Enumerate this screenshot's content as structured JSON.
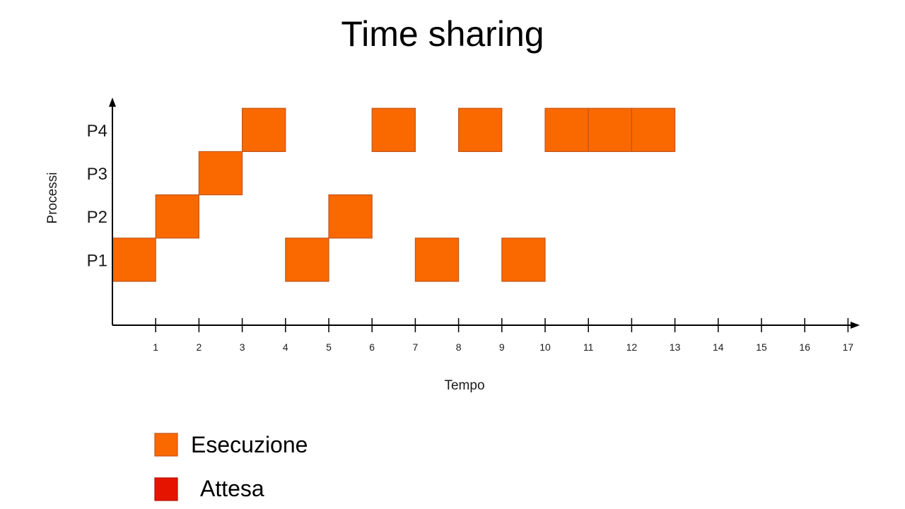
{
  "chart_data": {
    "type": "gantt",
    "title": "Time sharing",
    "xlabel": "Tempo",
    "ylabel": "Processi",
    "xlim": [
      0,
      17
    ],
    "x_ticks": [
      1,
      2,
      3,
      4,
      5,
      6,
      7,
      8,
      9,
      10,
      11,
      12,
      13,
      14,
      15,
      16,
      17
    ],
    "categories": [
      "P1",
      "P2",
      "P3",
      "P4"
    ],
    "series": [
      {
        "name": "Esecuzione",
        "color": "#fa6800",
        "stroke": "#c0571c",
        "slots": [
          {
            "process": "P1",
            "start": 0,
            "end": 1
          },
          {
            "process": "P2",
            "start": 1,
            "end": 2
          },
          {
            "process": "P3",
            "start": 2,
            "end": 3
          },
          {
            "process": "P4",
            "start": 3,
            "end": 4
          },
          {
            "process": "P1",
            "start": 4,
            "end": 5
          },
          {
            "process": "P2",
            "start": 5,
            "end": 6
          },
          {
            "process": "P4",
            "start": 6,
            "end": 7
          },
          {
            "process": "P1",
            "start": 7,
            "end": 8
          },
          {
            "process": "P4",
            "start": 8,
            "end": 9
          },
          {
            "process": "P1",
            "start": 9,
            "end": 10
          },
          {
            "process": "P4",
            "start": 10,
            "end": 11
          },
          {
            "process": "P4",
            "start": 11,
            "end": 12
          },
          {
            "process": "P4",
            "start": 12,
            "end": 13
          }
        ]
      },
      {
        "name": "Attesa",
        "color": "#e51400",
        "stroke": "#b11100",
        "slots": []
      }
    ],
    "legend_position": "bottom-left"
  }
}
